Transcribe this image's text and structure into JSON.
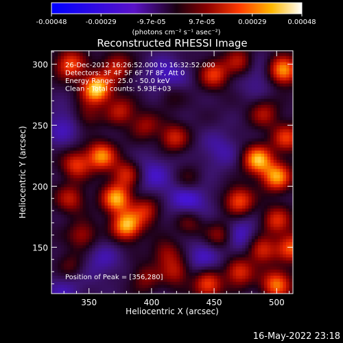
{
  "chart_data": {
    "type": "heatmap",
    "title": "Reconstructed RHESSI Image",
    "xlabel": "Heliocentric X (arcsec)",
    "ylabel": "Heliocentric Y (arcsec)",
    "xlim": [
      320,
      513
    ],
    "ylim": [
      112,
      311
    ],
    "x_ticks": [
      350,
      400,
      450,
      500
    ],
    "y_ticks": [
      150,
      200,
      250,
      300
    ],
    "colorbar": {
      "range": [
        -0.00048,
        0.00048
      ],
      "tick_labels": [
        "-0.00048",
        "-0.00029",
        "-9.7e-05",
        "9.7e-05",
        "0.00029",
        "0.00048"
      ],
      "unit_label": "(photons cm⁻² s⁻¹ asec⁻²)"
    },
    "annotations": [
      "26-Dec-2012 16:26:52.000 to 16:32:52.000",
      "Detectors: 3F 4F 5F 6F 7F 8F, Att 0",
      "Energy Range: 25.0 - 50.0 keV",
      "Clean - Total counts: 5.93E+03"
    ],
    "peak_label": "Position of Peak = [356,280]",
    "peak_position": [
      356,
      280
    ],
    "blobs": [
      {
        "x": 356,
        "y": 280,
        "v": 0.00048
      },
      {
        "x": 335,
        "y": 300,
        "v": 0.0003
      },
      {
        "x": 372,
        "y": 298,
        "v": 0.00022
      },
      {
        "x": 348,
        "y": 258,
        "v": 0.00014
      },
      {
        "x": 375,
        "y": 262,
        "v": 0.0002
      },
      {
        "x": 395,
        "y": 250,
        "v": 0.00016
      },
      {
        "x": 418,
        "y": 240,
        "v": 0.00022
      },
      {
        "x": 450,
        "y": 292,
        "v": 0.00026
      },
      {
        "x": 470,
        "y": 302,
        "v": 0.0002
      },
      {
        "x": 505,
        "y": 295,
        "v": 0.0004
      },
      {
        "x": 490,
        "y": 260,
        "v": 0.00018
      },
      {
        "x": 485,
        "y": 222,
        "v": 0.00042
      },
      {
        "x": 500,
        "y": 208,
        "v": 0.00038
      },
      {
        "x": 508,
        "y": 240,
        "v": 0.00026
      },
      {
        "x": 470,
        "y": 188,
        "v": 0.0003
      },
      {
        "x": 500,
        "y": 172,
        "v": 0.00024
      },
      {
        "x": 455,
        "y": 160,
        "v": 0.0002
      },
      {
        "x": 488,
        "y": 148,
        "v": 0.00026
      },
      {
        "x": 430,
        "y": 170,
        "v": 0.00014
      },
      {
        "x": 340,
        "y": 218,
        "v": 0.00026
      },
      {
        "x": 360,
        "y": 225,
        "v": 0.00036
      },
      {
        "x": 380,
        "y": 210,
        "v": 0.00024
      },
      {
        "x": 335,
        "y": 190,
        "v": 0.0002
      },
      {
        "x": 372,
        "y": 190,
        "v": 0.0004
      },
      {
        "x": 380,
        "y": 168,
        "v": 0.00042
      },
      {
        "x": 395,
        "y": 180,
        "v": 0.00022
      },
      {
        "x": 345,
        "y": 160,
        "v": 0.00018
      },
      {
        "x": 412,
        "y": 145,
        "v": 0.00016
      },
      {
        "x": 420,
        "y": 130,
        "v": 0.0002
      },
      {
        "x": 395,
        "y": 125,
        "v": 0.00014
      },
      {
        "x": 335,
        "y": 135,
        "v": 0.00012
      },
      {
        "x": 445,
        "y": 120,
        "v": 0.0003
      },
      {
        "x": 470,
        "y": 130,
        "v": 0.00026
      },
      {
        "x": 500,
        "y": 120,
        "v": 0.00034
      },
      {
        "x": 512,
        "y": 150,
        "v": 0.0003
      },
      {
        "x": 415,
        "y": 275,
        "v": 0.0001
      },
      {
        "x": 430,
        "y": 205,
        "v": 0.00012
      }
    ],
    "troughs": [
      {
        "x": 330,
        "y": 250,
        "v": -0.00012
      },
      {
        "x": 412,
        "y": 290,
        "v": -0.00014
      },
      {
        "x": 430,
        "y": 190,
        "v": -0.00016
      },
      {
        "x": 400,
        "y": 210,
        "v": -0.00012
      },
      {
        "x": 470,
        "y": 160,
        "v": -0.00014
      },
      {
        "x": 485,
        "y": 290,
        "v": -0.0001
      },
      {
        "x": 440,
        "y": 140,
        "v": -0.00012
      },
      {
        "x": 360,
        "y": 140,
        "v": -0.0001
      },
      {
        "x": 455,
        "y": 230,
        "v": -0.0001
      },
      {
        "x": 330,
        "y": 115,
        "v": -0.0001
      }
    ],
    "grid": false,
    "legend": "none"
  },
  "footer": {
    "timestamp": "16-May-2022 23:18"
  }
}
